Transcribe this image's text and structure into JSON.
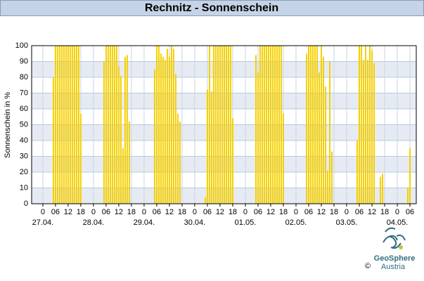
{
  "chart_data": {
    "type": "bar",
    "title": "Rechnitz - Sonnenschein",
    "y_label": "Sonnenschein in %",
    "x": [
      5,
      6,
      7,
      8,
      9,
      10,
      11,
      12,
      13,
      14,
      15,
      16,
      17,
      18,
      29,
      30,
      31,
      32,
      33,
      34,
      35,
      36,
      37,
      38,
      39,
      40,
      41,
      53,
      54,
      55,
      56,
      57,
      58,
      59,
      60,
      61,
      62,
      63,
      64,
      65,
      77,
      78,
      79,
      80,
      81,
      82,
      83,
      84,
      85,
      86,
      87,
      88,
      89,
      90,
      101,
      102,
      103,
      104,
      105,
      106,
      107,
      108,
      109,
      110,
      111,
      112,
      113,
      114,
      125,
      126,
      127,
      128,
      129,
      130,
      131,
      132,
      133,
      134,
      135,
      136,
      137,
      149,
      150,
      151,
      152,
      153,
      154,
      155,
      156,
      157,
      158,
      159,
      160,
      161,
      173,
      174
    ],
    "values": [
      80,
      100,
      100,
      100,
      100,
      100,
      100,
      100,
      100,
      100,
      100,
      100,
      100,
      57,
      90,
      100,
      100,
      100,
      100,
      100,
      100,
      87,
      81,
      35,
      93,
      94,
      52,
      85,
      100,
      100,
      95,
      93,
      91,
      98,
      93,
      100,
      98,
      82,
      57,
      52,
      4,
      72,
      100,
      71,
      100,
      100,
      100,
      100,
      100,
      100,
      100,
      100,
      100,
      54,
      94,
      83,
      100,
      100,
      100,
      100,
      100,
      100,
      100,
      100,
      100,
      100,
      100,
      57,
      95,
      100,
      100,
      100,
      100,
      100,
      83,
      100,
      93,
      74,
      21,
      90,
      33,
      40,
      100,
      100,
      91,
      100,
      91,
      100,
      97,
      89,
      0,
      0,
      17,
      19,
      10,
      35
    ],
    "color": "#f5d000",
    "xlim": [
      -5.3,
      177
    ],
    "ylim": [
      0,
      100
    ],
    "yticks": [
      0,
      10,
      20,
      30,
      40,
      50,
      60,
      70,
      80,
      90,
      100
    ],
    "xticks": [
      {
        "value": 0,
        "label": "0"
      },
      {
        "value": 6,
        "label": "06"
      },
      {
        "value": 12,
        "label": "12"
      },
      {
        "value": 18,
        "label": "18"
      },
      {
        "value": 24,
        "label": "0"
      },
      {
        "value": 30,
        "label": "06"
      },
      {
        "value": 36,
        "label": "12"
      },
      {
        "value": 42,
        "label": "18"
      },
      {
        "value": 48,
        "label": "0"
      },
      {
        "value": 54,
        "label": "06"
      },
      {
        "value": 60,
        "label": "12"
      },
      {
        "value": 66,
        "label": "18"
      },
      {
        "value": 72,
        "label": "0"
      },
      {
        "value": 78,
        "label": "06"
      },
      {
        "value": 84,
        "label": "12"
      },
      {
        "value": 90,
        "label": "18"
      },
      {
        "value": 96,
        "label": "0"
      },
      {
        "value": 102,
        "label": "06"
      },
      {
        "value": 108,
        "label": "12"
      },
      {
        "value": 114,
        "label": "18"
      },
      {
        "value": 120,
        "label": "0"
      },
      {
        "value": 126,
        "label": "06"
      },
      {
        "value": 132,
        "label": "12"
      },
      {
        "value": 138,
        "label": "18"
      },
      {
        "value": 144,
        "label": "0"
      },
      {
        "value": 150,
        "label": "06"
      },
      {
        "value": 156,
        "label": "12"
      },
      {
        "value": 162,
        "label": "18"
      },
      {
        "value": 168,
        "label": "0"
      },
      {
        "value": 174,
        "label": "06"
      }
    ],
    "x_dates": [
      {
        "value": 0,
        "label": "27.04."
      },
      {
        "value": 24,
        "label": "28.04."
      },
      {
        "value": 48,
        "label": "29.04."
      },
      {
        "value": 72,
        "label": "30.04."
      },
      {
        "value": 96,
        "label": "01.05."
      },
      {
        "value": 120,
        "label": "02.05."
      },
      {
        "value": 144,
        "label": "03.05."
      },
      {
        "value": 168,
        "label": "04.05."
      }
    ],
    "grid": true
  },
  "logo": {
    "name": "GeoSphere",
    "sub": "Austria",
    "copyright": "©"
  }
}
